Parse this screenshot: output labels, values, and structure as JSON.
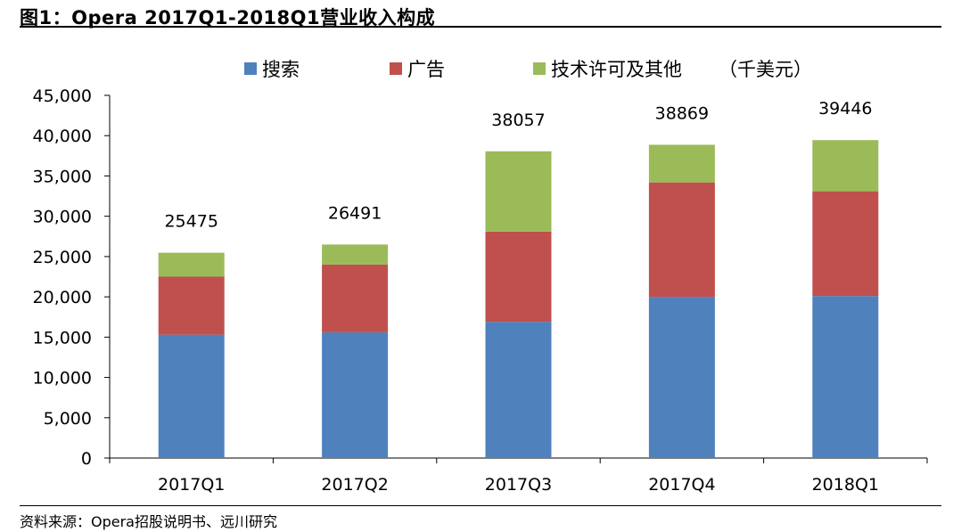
{
  "figure_title": "图1：Opera 2017Q1-2018Q1营业收入构成",
  "source": "资料来源：Opera招股说明书、远川研究",
  "chart_data": {
    "type": "bar",
    "stacked": true,
    "unit_label": "（千美元）",
    "categories": [
      "2017Q1",
      "2017Q2",
      "2017Q3",
      "2017Q4",
      "2018Q1"
    ],
    "series": [
      {
        "name": "搜索",
        "color": "#4F81BD",
        "values": [
          15300,
          15600,
          16900,
          20000,
          20100
        ]
      },
      {
        "name": "广告",
        "color": "#C0504D",
        "values": [
          7200,
          8400,
          11200,
          14200,
          13000
        ]
      },
      {
        "name": "技术许可及其他",
        "color": "#9BBB59",
        "values": [
          2975,
          2491,
          9957,
          4669,
          6346
        ]
      }
    ],
    "totals": [
      "25475",
      "26491",
      "38057",
      "38869",
      "39446"
    ],
    "ylim": [
      0,
      45000
    ],
    "yticks": [
      "0",
      "5,000",
      "10,000",
      "15,000",
      "20,000",
      "25,000",
      "30,000",
      "35,000",
      "40,000",
      "45,000"
    ],
    "legend_position": "top",
    "grid": false
  }
}
